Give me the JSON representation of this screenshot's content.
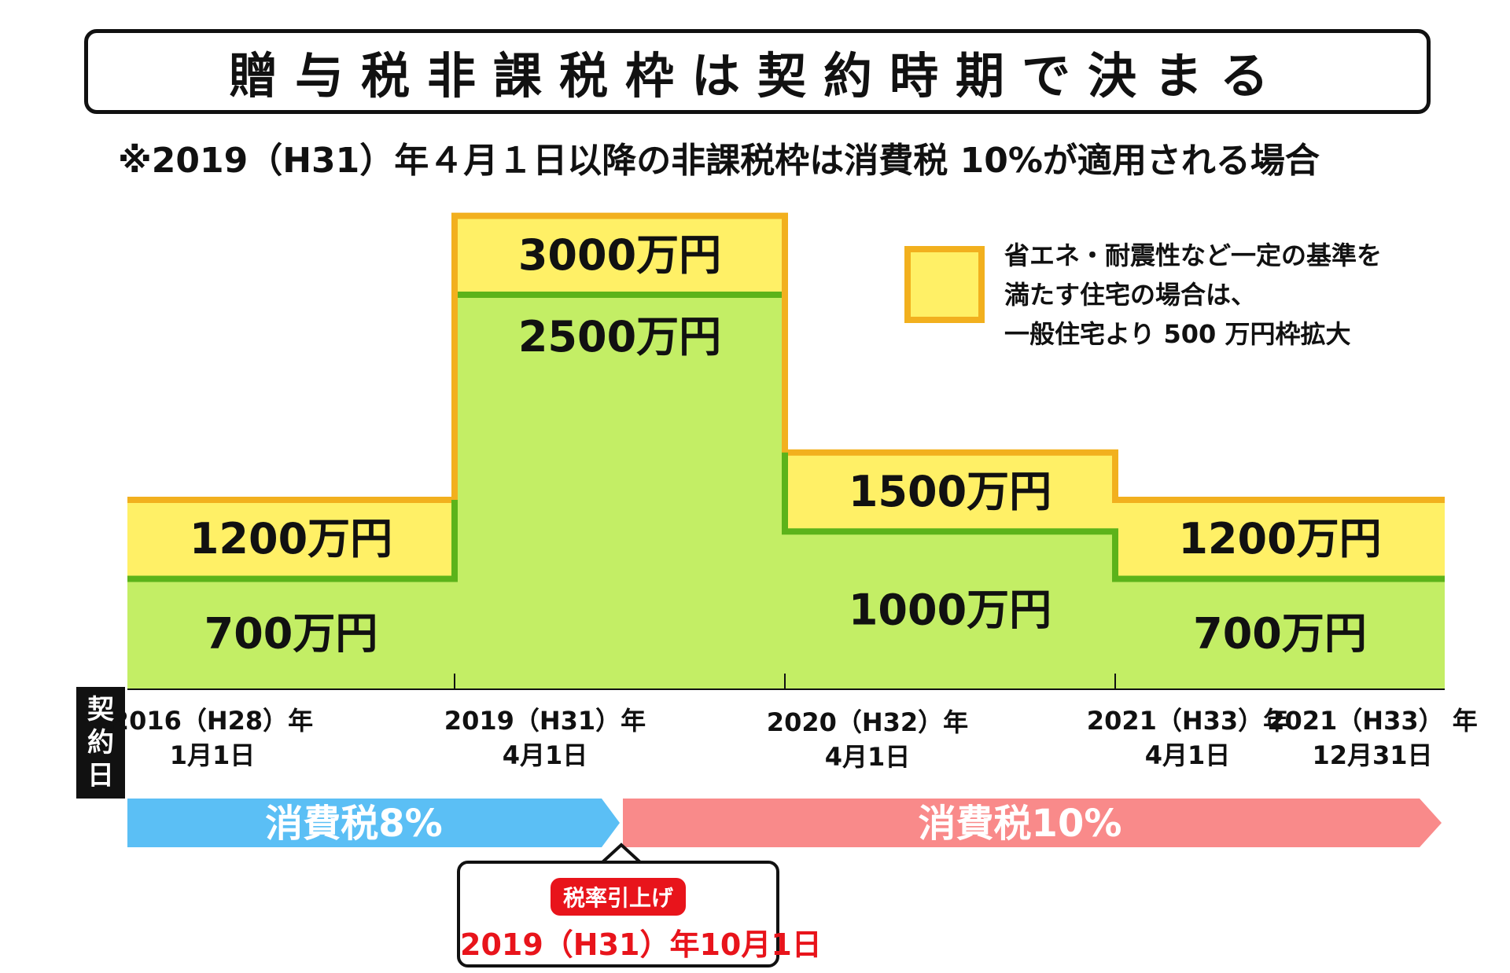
{
  "title": "贈与税非課税枠は契約時期で決まる",
  "subtitle": "※2019（H31）年４月１日以降の非課税枠は消費税 10%が適用される場合",
  "legend": {
    "lines": [
      "省エネ・耐震性など一定の基準を",
      "満たす住宅の場合は、",
      "一般住宅より 500 万円枠拡大"
    ],
    "swatch_color": "#fff066",
    "swatch_border": "#f2b01e"
  },
  "contract_label": [
    "契",
    "約",
    "日"
  ],
  "dates": [
    {
      "year": "2016（H28）年",
      "day": "1月1日"
    },
    {
      "year": "2019（H31）年",
      "day": "4月1日"
    },
    {
      "year": "2020（H32）年",
      "day": "4月1日"
    },
    {
      "year": "2021（H33）年",
      "day": "4月1日"
    },
    {
      "year": "2021（H33） 年",
      "day": "12月31日"
    }
  ],
  "tax_bands": [
    {
      "label": "消費税8%",
      "color": "#5bbff5"
    },
    {
      "label": "消費税10%",
      "color": "#f98a8a"
    }
  ],
  "callout": {
    "badge": "税率引上げ",
    "date": "2019（H31）年10月1日",
    "color": "#e8141b"
  },
  "colors": {
    "general": "#c3ee65",
    "general_line": "#5cb31a",
    "eco": "#fff066",
    "eco_line": "#f2b01e"
  },
  "chart_data": {
    "type": "area",
    "x": [
      "2016（H28）年1月1日",
      "2019（H31）年4月1日",
      "2020（H32）年4月1日",
      "2021（H33）年4月1日",
      "2021（H33） 年12月31日"
    ],
    "segments": [
      {
        "from": "2016（H28）年1月1日",
        "to": "2019（H31）年4月1日",
        "general": 700,
        "eco": 1200
      },
      {
        "from": "2019（H31）年4月1日",
        "to": "2020（H32）年4月1日",
        "general": 2500,
        "eco": 3000
      },
      {
        "from": "2020（H32）年4月1日",
        "to": "2021（H33）年4月1日",
        "general": 1000,
        "eco": 1500
      },
      {
        "from": "2021（H33）年4月1日",
        "to": "2021（H33） 年12月31日",
        "general": 700,
        "eco": 1200
      }
    ],
    "labels": {
      "general": [
        "700万円",
        "2500万円",
        "1000万円",
        "700万円"
      ],
      "eco": [
        "1200万円",
        "3000万円",
        "1500万円",
        "1200万円"
      ]
    },
    "ylim": [
      0,
      3700
    ],
    "unit": "万円"
  }
}
